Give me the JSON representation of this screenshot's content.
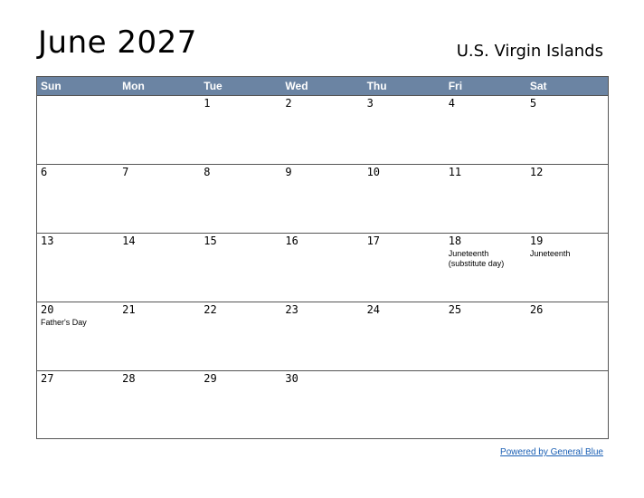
{
  "header": {
    "title": "June 2027",
    "region": "U.S. Virgin Islands"
  },
  "colors": {
    "header_bg": "#6b84a3",
    "header_text": "#ffffff",
    "link": "#1a5fb4",
    "border": "#555555"
  },
  "weekdays": [
    "Sun",
    "Mon",
    "Tue",
    "Wed",
    "Thu",
    "Fri",
    "Sat"
  ],
  "weeks": [
    [
      {
        "day": "",
        "holiday": ""
      },
      {
        "day": "",
        "holiday": ""
      },
      {
        "day": "1",
        "holiday": ""
      },
      {
        "day": "2",
        "holiday": ""
      },
      {
        "day": "3",
        "holiday": ""
      },
      {
        "day": "4",
        "holiday": ""
      },
      {
        "day": "5",
        "holiday": ""
      }
    ],
    [
      {
        "day": "6",
        "holiday": ""
      },
      {
        "day": "7",
        "holiday": ""
      },
      {
        "day": "8",
        "holiday": ""
      },
      {
        "day": "9",
        "holiday": ""
      },
      {
        "day": "10",
        "holiday": ""
      },
      {
        "day": "11",
        "holiday": ""
      },
      {
        "day": "12",
        "holiday": ""
      }
    ],
    [
      {
        "day": "13",
        "holiday": ""
      },
      {
        "day": "14",
        "holiday": ""
      },
      {
        "day": "15",
        "holiday": ""
      },
      {
        "day": "16",
        "holiday": ""
      },
      {
        "day": "17",
        "holiday": ""
      },
      {
        "day": "18",
        "holiday": "Juneteenth\n(substitute day)"
      },
      {
        "day": "19",
        "holiday": "Juneteenth"
      }
    ],
    [
      {
        "day": "20",
        "holiday": "Father's Day"
      },
      {
        "day": "21",
        "holiday": ""
      },
      {
        "day": "22",
        "holiday": ""
      },
      {
        "day": "23",
        "holiday": ""
      },
      {
        "day": "24",
        "holiday": ""
      },
      {
        "day": "25",
        "holiday": ""
      },
      {
        "day": "26",
        "holiday": ""
      }
    ],
    [
      {
        "day": "27",
        "holiday": ""
      },
      {
        "day": "28",
        "holiday": ""
      },
      {
        "day": "29",
        "holiday": ""
      },
      {
        "day": "30",
        "holiday": ""
      },
      {
        "day": "",
        "holiday": ""
      },
      {
        "day": "",
        "holiday": ""
      },
      {
        "day": "",
        "holiday": ""
      }
    ]
  ],
  "footer": {
    "link_text": "Powered by General Blue"
  }
}
